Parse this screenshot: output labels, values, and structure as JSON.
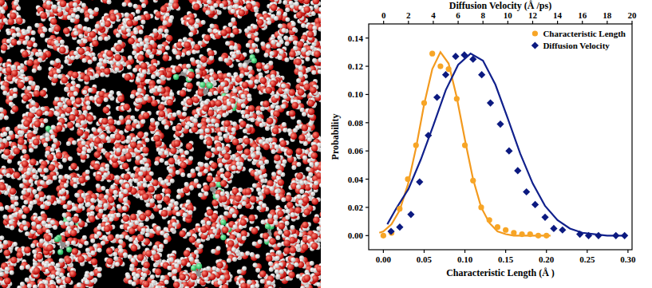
{
  "chart_data": {
    "type": "scatter",
    "x_label": "Characteristic Length (Å )",
    "x2_label": "Diffusion Velocity (Å /ps)",
    "y_label": "Probability",
    "xlim": [
      -0.018,
      0.305
    ],
    "xticks": [
      {
        "value": 0,
        "label": "0.00"
      },
      {
        "value": 0.05,
        "label": "0.05"
      },
      {
        "value": 0.1,
        "label": "0.10"
      },
      {
        "value": 0.15,
        "label": "0.15"
      },
      {
        "value": 0.2,
        "label": "0.20"
      },
      {
        "value": 0.25,
        "label": "0.25"
      },
      {
        "value": 0.3,
        "label": "0.30"
      }
    ],
    "x2lim": [
      -1.2,
      20
    ],
    "x2ticks": [
      0,
      2,
      4,
      6,
      8,
      10,
      12,
      14,
      16,
      18,
      20
    ],
    "ylim": [
      -0.01,
      0.15
    ],
    "yticks": [
      {
        "value": 0,
        "label": "0.00"
      },
      {
        "value": 0.02,
        "label": "0.02"
      },
      {
        "value": 0.04,
        "label": "0.04"
      },
      {
        "value": 0.06,
        "label": "0.06"
      },
      {
        "value": 0.08,
        "label": "0.08"
      },
      {
        "value": 0.1,
        "label": "0.10"
      },
      {
        "value": 0.12,
        "label": "0.12"
      },
      {
        "value": 0.14,
        "label": "0.14"
      }
    ],
    "grid": false,
    "legend": "upper right",
    "series": [
      {
        "name": "Characteristic Length",
        "type": "scatter",
        "marker": "circle",
        "color": "#f7a526",
        "x": [
          0,
          0.01,
          0.02,
          0.03,
          0.04,
          0.05,
          0.06,
          0.07,
          0.08,
          0.09,
          0.1,
          0.11,
          0.12,
          0.13,
          0.14,
          0.15,
          0.16,
          0.17,
          0.18,
          0.19,
          0.2
        ],
        "values": [
          0,
          0.002,
          0.019,
          0.04,
          0.064,
          0.094,
          0.129,
          0.12,
          0.118,
          0.097,
          0.064,
          0.039,
          0.02,
          0.011,
          0.006,
          0.004,
          0.002,
          0.001,
          0.001,
          0,
          0
        ]
      },
      {
        "name": "Diffusion Velocity",
        "type": "scatter",
        "marker": "diamond",
        "color": "#0c1a80",
        "axis": "x2",
        "x": [
          0.6,
          1.3,
          2.2,
          2.9,
          3.6,
          4.3,
          5.0,
          5.8,
          6.5,
          7.2,
          7.9,
          8.6,
          9.4,
          10.1,
          10.8,
          11.5,
          12.2,
          13.0,
          13.7,
          14.4,
          15.8,
          16.5,
          17.3,
          18.7,
          19.4
        ],
        "values": [
          0.003,
          0.006,
          0.015,
          0.038,
          0.071,
          0.098,
          0.114,
          0.127,
          0.128,
          0.125,
          0.114,
          0.094,
          0.079,
          0.06,
          0.046,
          0.031,
          0.022,
          0.013,
          0.005,
          0.004,
          0.001,
          0,
          0,
          0,
          0
        ]
      },
      {
        "type": "line",
        "line_style": "solid",
        "color": "#f39a1e",
        "x": [
          -0.005,
          0,
          0.01,
          0.02,
          0.03,
          0.04,
          0.05,
          0.06,
          0.07,
          0.08,
          0.09,
          0.1,
          0.11,
          0.12,
          0.13,
          0.14,
          0.15,
          0.16,
          0.17,
          0.18,
          0.19,
          0.2,
          0.205
        ],
        "values": [
          0.002,
          0.003,
          0.008,
          0.018,
          0.036,
          0.062,
          0.093,
          0.118,
          0.13,
          0.122,
          0.098,
          0.068,
          0.04,
          0.02,
          0.009,
          0.003,
          0.001,
          0,
          0,
          0,
          0,
          0,
          0
        ]
      },
      {
        "type": "line",
        "line_style": "solid",
        "color": "#10208c",
        "axis": "x2",
        "x": [
          0.3,
          1,
          2,
          3,
          4,
          5,
          6,
          7,
          8,
          9,
          10,
          11,
          12,
          13,
          14,
          15,
          16,
          17,
          18,
          19,
          19.4
        ],
        "values": [
          0.008,
          0.019,
          0.033,
          0.054,
          0.078,
          0.103,
          0.121,
          0.129,
          0.124,
          0.107,
          0.083,
          0.058,
          0.037,
          0.021,
          0.011,
          0.005,
          0.002,
          0.001,
          0,
          0,
          0
        ]
      }
    ]
  }
}
